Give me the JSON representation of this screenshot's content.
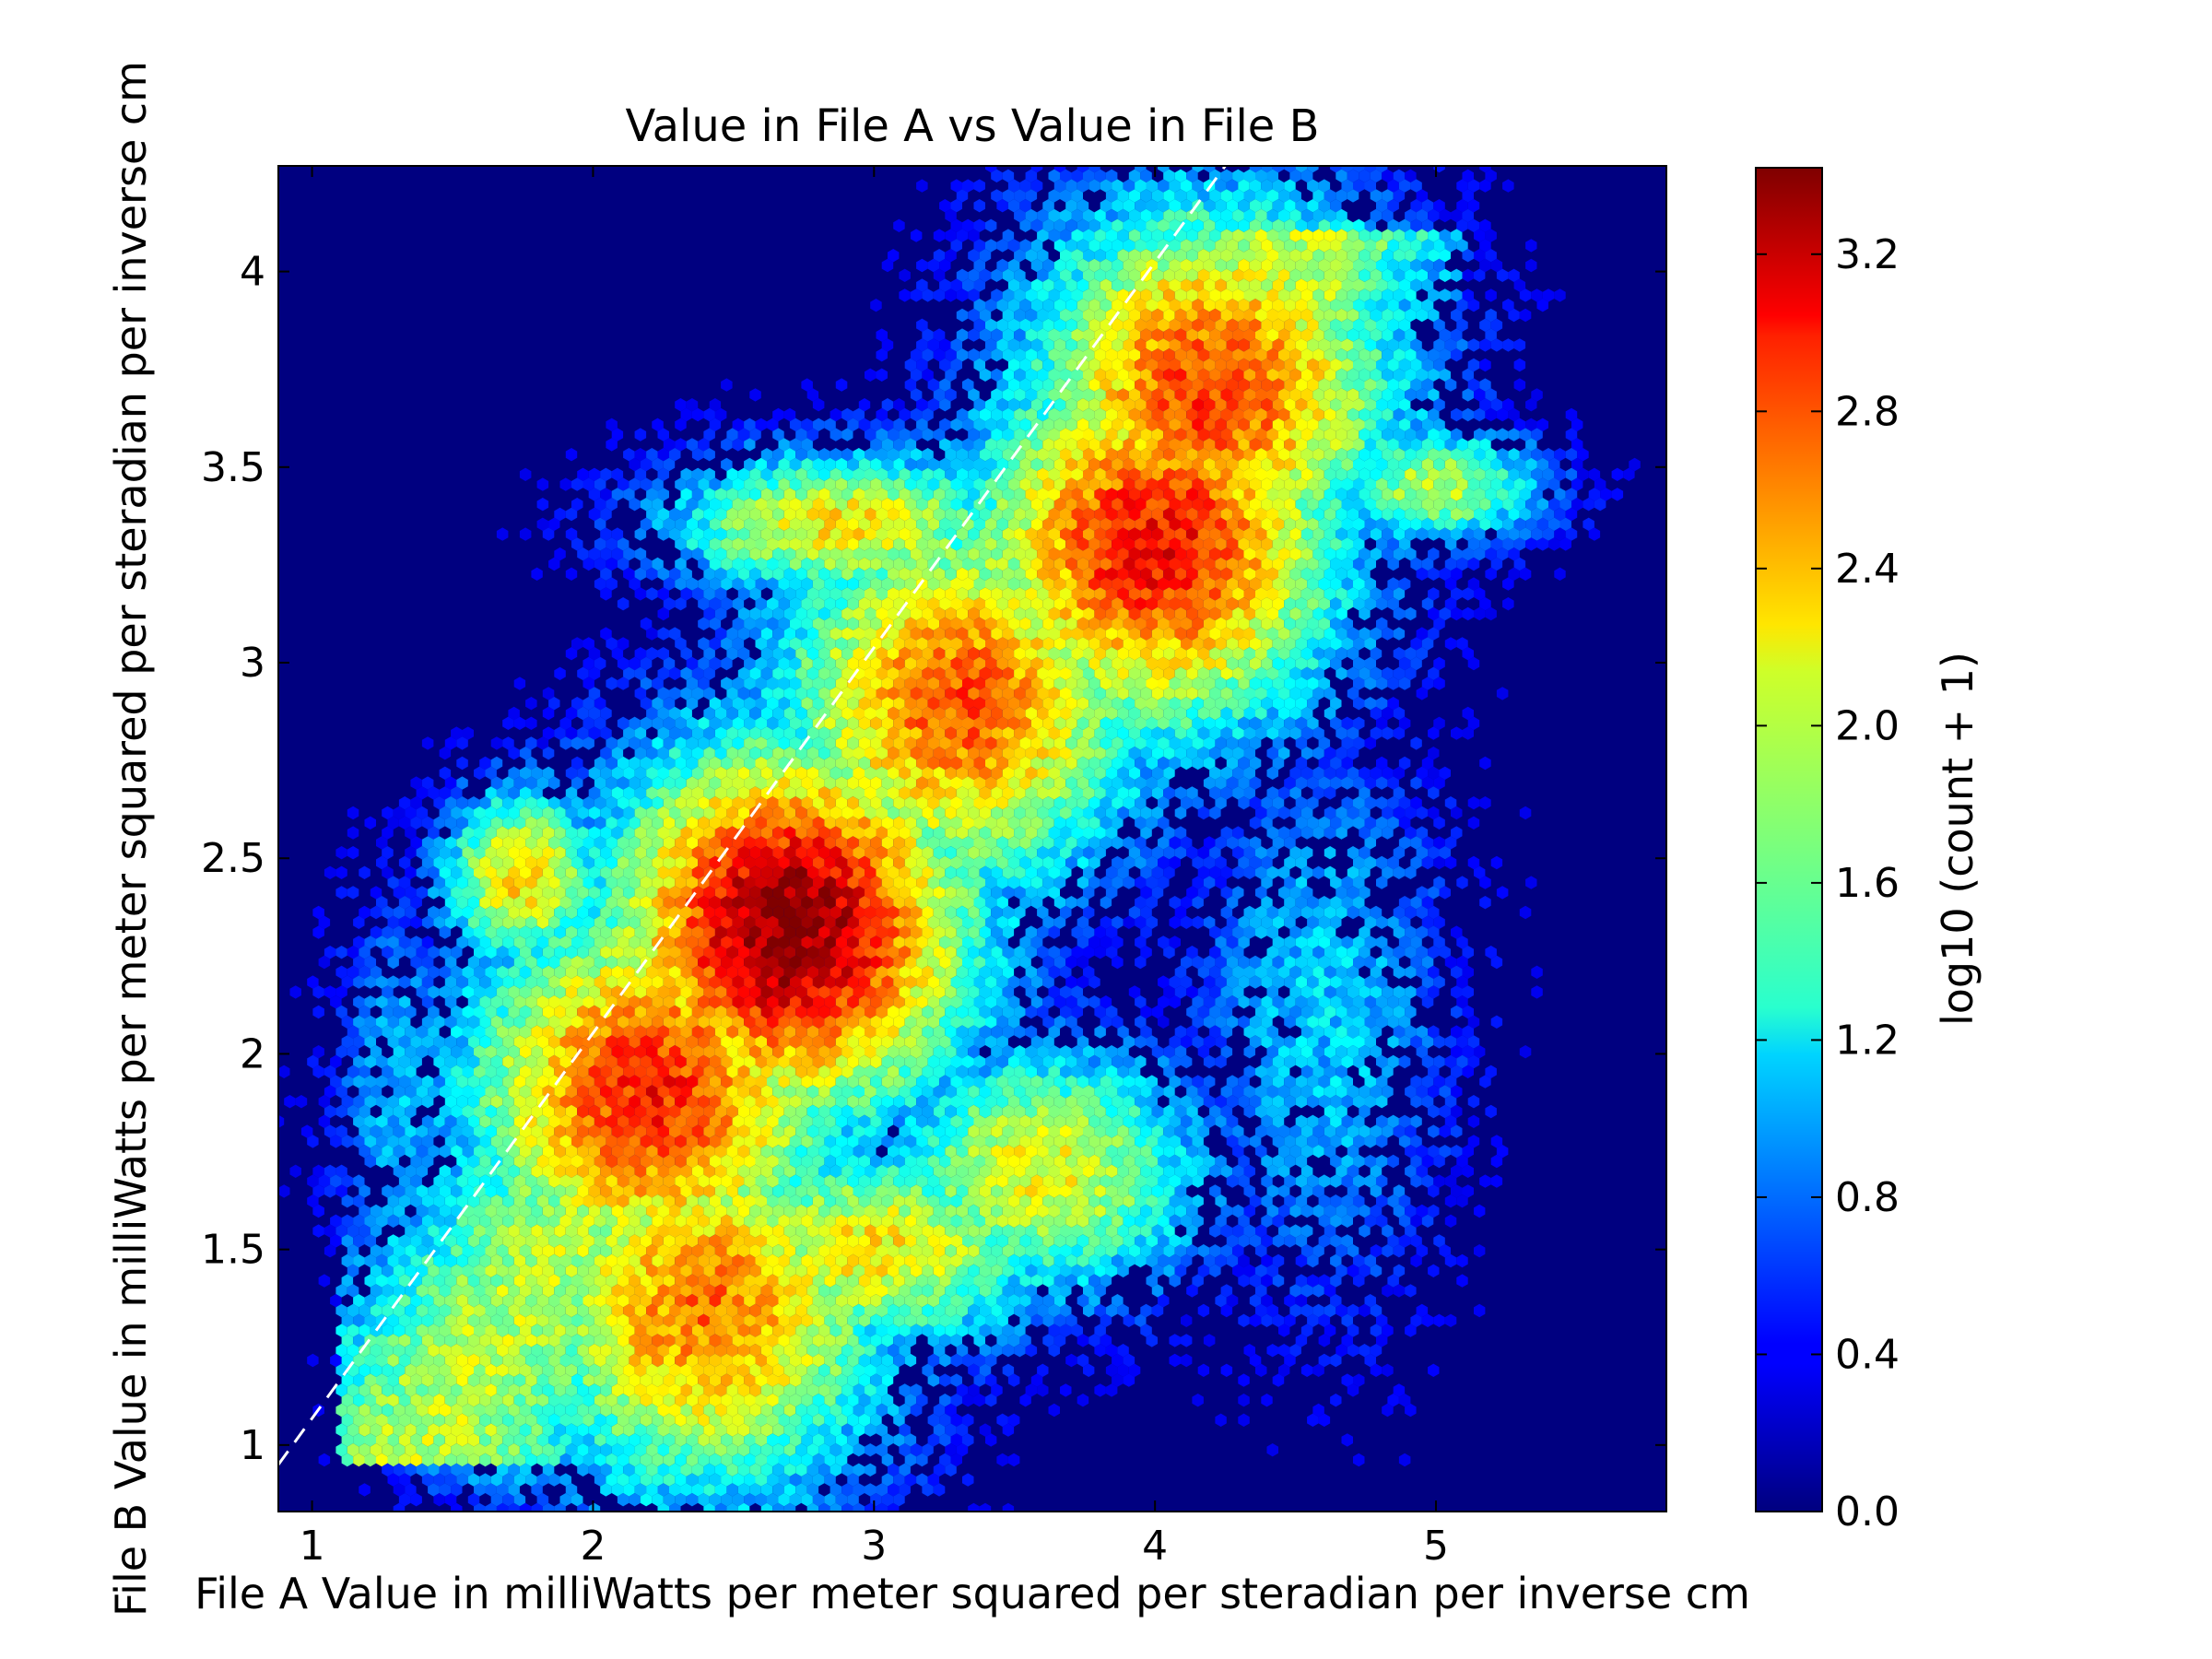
{
  "chart_data": {
    "type": "heatmap",
    "subtype": "hexbin",
    "title": "Value in File A vs Value in File B",
    "xlabel": "File A Value in milliWatts per meter squared per steradian per inverse cm",
    "ylabel": "File B Value in milliWatts per meter squared per steradian per inverse cm",
    "xlim": [
      0.88,
      5.82
    ],
    "ylim": [
      0.83,
      4.27
    ],
    "xticks": [
      1,
      2,
      3,
      4,
      5
    ],
    "xtick_labels": [
      "1",
      "2",
      "3",
      "4",
      "5"
    ],
    "yticks": [
      1,
      1.5,
      2,
      2.5,
      3,
      3.5,
      4
    ],
    "ytick_labels": [
      "1",
      "1.5",
      "2",
      "2.5",
      "3",
      "3.5",
      "4"
    ],
    "colorbar": {
      "label": "log10 (count + 1)",
      "range": [
        0.0,
        3.42
      ],
      "ticks": [
        0.0,
        0.4,
        0.8,
        1.2,
        1.6,
        2.0,
        2.4,
        2.8,
        3.2
      ],
      "tick_labels": [
        "0.0",
        "0.4",
        "0.8",
        "1.2",
        "1.6",
        "2.0",
        "2.4",
        "2.8",
        "3.2"
      ],
      "colormap": "jet"
    },
    "background_color": "#000080",
    "reference_line": {
      "style": "dashed",
      "color": "#ffffff",
      "x": [
        0.88,
        4.25
      ],
      "y": [
        0.95,
        4.27
      ]
    },
    "density_peaks": [
      {
        "x": 2.7,
        "y": 2.32,
        "value": 3.4
      },
      {
        "x": 2.2,
        "y": 1.9,
        "value": 2.9
      },
      {
        "x": 4.0,
        "y": 3.3,
        "value": 3.0
      },
      {
        "x": 4.2,
        "y": 3.7,
        "value": 2.8
      },
      {
        "x": 2.4,
        "y": 1.35,
        "value": 2.6
      },
      {
        "x": 3.3,
        "y": 2.9,
        "value": 2.7
      }
    ],
    "grid": false
  }
}
